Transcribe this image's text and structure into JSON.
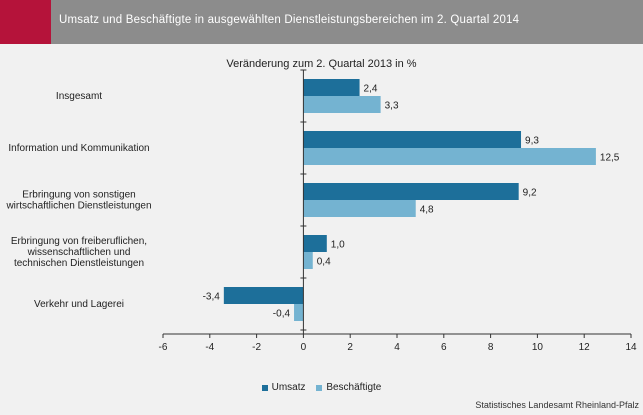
{
  "header": {
    "title": "Umsatz und Beschäftigte in ausgewählten Dienstleistungsbereichen im 2. Quartal 2014"
  },
  "chart_data": {
    "type": "bar",
    "orientation": "horizontal",
    "subtitle": "Veränderung zum 2. Quartal 2013 in %",
    "categories": [
      [
        "Insgesamt"
      ],
      [
        "Information und Kommunikation"
      ],
      [
        "Erbringung von sonstigen",
        "wirtschaftlichen Dienstleistungen"
      ],
      [
        "Erbringung von freiberuflichen,",
        "wissenschaftlichen und",
        "technischen Dienstleistungen"
      ],
      [
        "Verkehr und Lagerei"
      ]
    ],
    "series": [
      {
        "name": "Umsatz",
        "color": "#1d6f9a",
        "values": [
          2.4,
          9.3,
          9.2,
          1.0,
          -3.4
        ],
        "labels": [
          "2,4",
          "9,3",
          "9,2",
          "1,0",
          "-3,4"
        ]
      },
      {
        "name": "Beschäftigte",
        "color": "#74b3d1",
        "values": [
          3.3,
          12.5,
          4.8,
          0.4,
          -0.4
        ],
        "labels": [
          "3,3",
          "12,5",
          "4,8",
          "0,4",
          "-0,4"
        ]
      }
    ],
    "xlim": [
      -6,
      14
    ],
    "xticks": [
      -6,
      -4,
      -2,
      0,
      2,
      4,
      6,
      8,
      10,
      12,
      14
    ],
    "grid": false,
    "legend_position": "bottom"
  },
  "source": "Statistisches Landesamt Rheinland-Pfalz"
}
